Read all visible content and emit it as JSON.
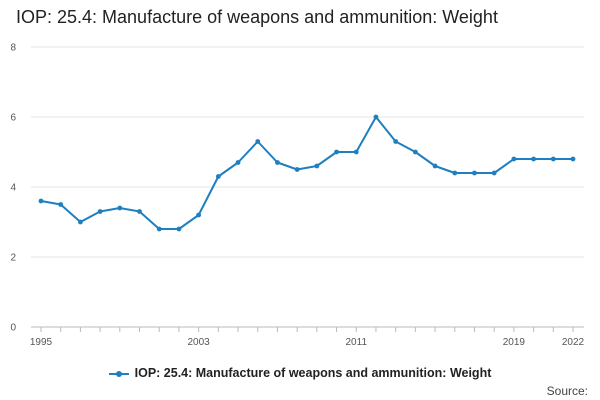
{
  "chart_data": {
    "type": "line",
    "title": "IOP: 25.4: Manufacture of weapons and ammunition: Weight",
    "xlabel": "",
    "ylabel": "",
    "x": [
      1995,
      1996,
      1997,
      1998,
      1999,
      2000,
      2001,
      2002,
      2003,
      2004,
      2005,
      2006,
      2007,
      2008,
      2009,
      2010,
      2011,
      2012,
      2013,
      2014,
      2015,
      2016,
      2017,
      2018,
      2019,
      2020,
      2021,
      2022
    ],
    "series": [
      {
        "name": "IOP: 25.4: Manufacture of weapons and ammunition: Weight",
        "values": [
          3.6,
          3.5,
          3.0,
          3.3,
          3.4,
          3.3,
          2.8,
          2.8,
          3.2,
          4.3,
          4.7,
          5.3,
          4.7,
          4.5,
          4.6,
          5.0,
          5.0,
          6.0,
          5.3,
          5.0,
          4.6,
          4.4,
          4.4,
          4.4,
          4.8,
          4.8,
          4.8,
          4.8
        ]
      }
    ],
    "xlim": [
      1995,
      2022
    ],
    "ylim": [
      0,
      8
    ],
    "yticks": [
      0,
      2,
      4,
      6,
      8
    ],
    "xticks": [
      1995,
      2003,
      2011,
      2019,
      2022
    ],
    "grid": "horizontal",
    "legend_position": "bottom",
    "color": "#1f7fbf"
  },
  "source_label": "Source:"
}
